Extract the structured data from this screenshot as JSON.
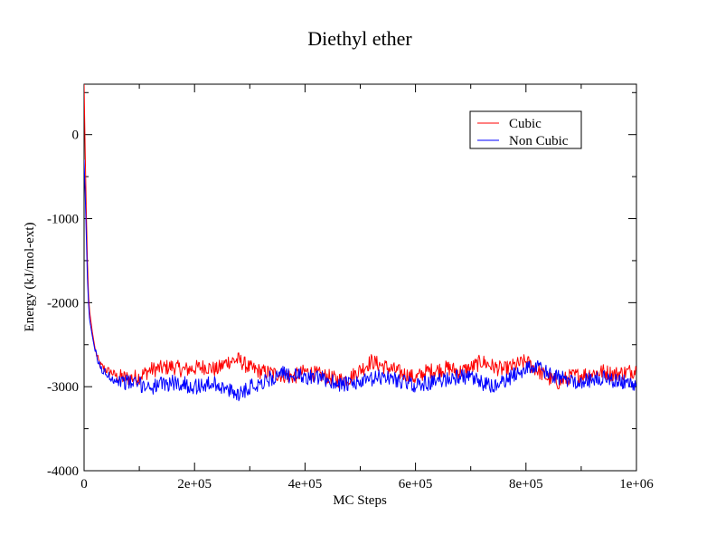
{
  "chart_data": {
    "type": "line",
    "title": "Diethyl ether",
    "xlabel": "MC Steps",
    "ylabel": "Energy (kJ/mol-ext)",
    "xlim": [
      0,
      1000000
    ],
    "ylim": [
      -4000,
      600
    ],
    "x_ticks": [
      0,
      200000,
      400000,
      600000,
      800000,
      1000000
    ],
    "x_tick_labels": [
      "0",
      "2e+05",
      "4e+05",
      "6e+05",
      "8e+05",
      "1e+06"
    ],
    "y_ticks": [
      -4000,
      -3000,
      -2000,
      -1000,
      0
    ],
    "y_tick_labels": [
      "-4000",
      "-3000",
      "-2000",
      "-1000",
      "0"
    ],
    "grid": false,
    "legend_position": "top-right",
    "series": [
      {
        "name": "Cubic",
        "color": "#ff0000",
        "x": [
          0,
          2000,
          4000,
          6000,
          8000,
          10000,
          15000,
          20000,
          25000,
          30000,
          40000,
          50000,
          60000,
          80000,
          100000,
          120000,
          140000,
          160000,
          180000,
          200000,
          220000,
          240000,
          260000,
          280000,
          300000,
          320000,
          340000,
          360000,
          380000,
          400000,
          420000,
          440000,
          460000,
          480000,
          500000,
          520000,
          540000,
          560000,
          580000,
          600000,
          620000,
          640000,
          660000,
          680000,
          700000,
          720000,
          740000,
          760000,
          780000,
          800000,
          820000,
          840000,
          860000,
          880000,
          900000,
          920000,
          940000,
          960000,
          980000,
          1000000
        ],
        "y": [
          600,
          -200,
          -900,
          -1500,
          -1900,
          -2100,
          -2350,
          -2550,
          -2680,
          -2750,
          -2800,
          -2830,
          -2880,
          -2900,
          -2880,
          -2800,
          -2780,
          -2760,
          -2800,
          -2780,
          -2760,
          -2800,
          -2700,
          -2680,
          -2780,
          -2820,
          -2840,
          -2860,
          -2880,
          -2820,
          -2850,
          -2880,
          -2920,
          -2900,
          -2800,
          -2700,
          -2750,
          -2800,
          -2850,
          -2900,
          -2820,
          -2800,
          -2780,
          -2820,
          -2780,
          -2700,
          -2760,
          -2800,
          -2750,
          -2700,
          -2800,
          -2900,
          -2950,
          -2880,
          -2860,
          -2840,
          -2820,
          -2850,
          -2830,
          -2800
        ]
      },
      {
        "name": "Non Cubic",
        "color": "#0000ff",
        "x": [
          0,
          2000,
          4000,
          6000,
          8000,
          10000,
          15000,
          20000,
          25000,
          30000,
          40000,
          50000,
          60000,
          80000,
          100000,
          120000,
          140000,
          160000,
          180000,
          200000,
          220000,
          240000,
          260000,
          280000,
          300000,
          320000,
          340000,
          360000,
          380000,
          400000,
          420000,
          440000,
          460000,
          480000,
          500000,
          520000,
          540000,
          560000,
          580000,
          600000,
          620000,
          640000,
          660000,
          680000,
          700000,
          720000,
          740000,
          760000,
          780000,
          800000,
          820000,
          840000,
          860000,
          880000,
          900000,
          920000,
          940000,
          960000,
          980000,
          1000000
        ],
        "y": [
          -300,
          -700,
          -1200,
          -1700,
          -2000,
          -2200,
          -2400,
          -2580,
          -2700,
          -2780,
          -2850,
          -2900,
          -2920,
          -2950,
          -2970,
          -3000,
          -2980,
          -2950,
          -2970,
          -3000,
          -2980,
          -2960,
          -3050,
          -3080,
          -3000,
          -2950,
          -2900,
          -2850,
          -2870,
          -2880,
          -2900,
          -2920,
          -2960,
          -2980,
          -2950,
          -2920,
          -2880,
          -2900,
          -2950,
          -2980,
          -2960,
          -2940,
          -2900,
          -2880,
          -2900,
          -2960,
          -3000,
          -2950,
          -2850,
          -2780,
          -2760,
          -2850,
          -2900,
          -2920,
          -2940,
          -2920,
          -2900,
          -2920,
          -2950,
          -2970
        ]
      }
    ]
  }
}
